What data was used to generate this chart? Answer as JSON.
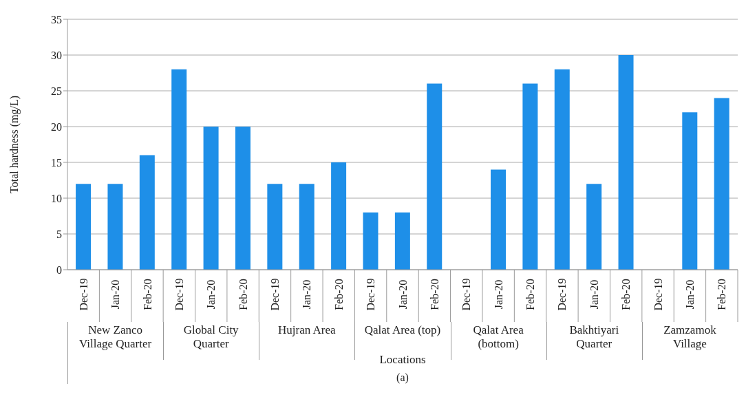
{
  "chart_data": {
    "type": "bar",
    "xlabel": "Locations",
    "ylabel": "Total hardness (mg/L)",
    "categories": [
      "Dec-19",
      "Jan-20",
      "Feb-20",
      "Dec-19",
      "Jan-20",
      "Feb-20",
      "Dec-19",
      "Jan-20",
      "Feb-20",
      "Dec-19",
      "Jan-20",
      "Feb-20",
      "Dec-19",
      "Jan-20",
      "Feb-20",
      "Dec-19",
      "Jan-20",
      "Feb-20",
      "Dec-19",
      "Jan-20",
      "Feb-20"
    ],
    "values": [
      12,
      12,
      16,
      28,
      20,
      20,
      12,
      12,
      15,
      8,
      8,
      26,
      null,
      14,
      26,
      28,
      12,
      30,
      null,
      22,
      24
    ],
    "color": "#1e8fe8",
    "ylim": [
      0,
      35
    ],
    "yticks": [
      0,
      5,
      10,
      15,
      20,
      25,
      30,
      35
    ],
    "grid": "y",
    "legend": false,
    "annotations": [
      "New Zanco Village Quarter",
      "Global City Quarter",
      "Hujran Area",
      "Qalat Area (top)",
      "Qalat Area (bottom)",
      "Bakhtiyari Quarter",
      "Zamzamok Village",
      "(a)"
    ]
  }
}
